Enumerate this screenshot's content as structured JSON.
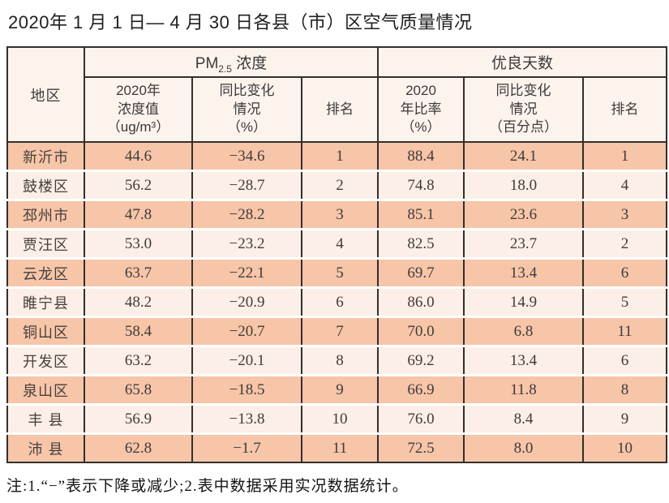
{
  "page": {
    "title": "2020年 1 月 1 日— 4 月 30 日各县（市）区空气质量情况"
  },
  "table": {
    "region_header": "地区",
    "pm_group": {
      "prefix": "PM",
      "sub": "2.5",
      "suffix": " 浓度"
    },
    "good_group": "优良天数",
    "sub_headers": [
      "2020年\n浓度值\n（ug/m³）",
      "同比变化\n情况\n（%）",
      "排名",
      "2020\n年比率\n（%）",
      "同比变化\n情况\n（百分点）",
      "排名"
    ],
    "cell_names": [
      "region-cell",
      "pm-value-cell",
      "pm-change-cell",
      "pm-rank-cell",
      "good-ratio-cell",
      "good-change-cell",
      "good-rank-cell"
    ],
    "rows": [
      [
        "新沂市",
        "44.6",
        "−34.6",
        "1",
        "88.4",
        "24.1",
        "1"
      ],
      [
        "鼓楼区",
        "56.2",
        "−28.7",
        "2",
        "74.8",
        "18.0",
        "4"
      ],
      [
        "邳州市",
        "47.8",
        "−28.2",
        "3",
        "85.1",
        "23.6",
        "3"
      ],
      [
        "贾汪区",
        "53.0",
        "−23.2",
        "4",
        "82.5",
        "23.7",
        "2"
      ],
      [
        "云龙区",
        "63.7",
        "−22.1",
        "5",
        "69.7",
        "13.4",
        "6"
      ],
      [
        "睢宁县",
        "48.2",
        "−20.9",
        "6",
        "86.0",
        "14.9",
        "5"
      ],
      [
        "铜山区",
        "58.4",
        "−20.7",
        "7",
        "70.0",
        "6.8",
        "11"
      ],
      [
        "开发区",
        "63.2",
        "−20.1",
        "8",
        "69.2",
        "13.4",
        "6"
      ],
      [
        "泉山区",
        "65.8",
        "−18.5",
        "9",
        "66.9",
        "11.8",
        "8"
      ],
      [
        "丰 县",
        "56.9",
        "−13.8",
        "10",
        "76.0",
        "8.4",
        "9"
      ],
      [
        "沛 县",
        "62.8",
        "−1.7",
        "11",
        "72.5",
        "8.0",
        "10"
      ]
    ]
  },
  "footnote": "注:1.“−”表示下降或减少;2.表中数据采用实况数据统计。",
  "colors": {
    "row_odd": "#f7c5a8",
    "row_even": "#fcefe7",
    "header_bg": "#fdf3ed",
    "border": "#332f2d",
    "page_bg": "#ffffff"
  }
}
